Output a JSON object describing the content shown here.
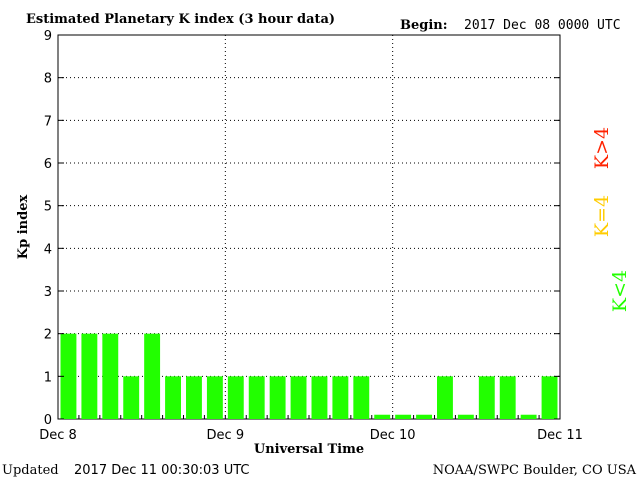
{
  "header": {
    "title": "Estimated Planetary K index (3 hour data)",
    "begin_label": "Begin:",
    "begin_value": "2017 Dec 08 0000 UTC"
  },
  "footer": {
    "updated_label": "Updated",
    "updated_value": "2017 Dec 11 00:30:03 UTC",
    "credit": "NOAA/SWPC Boulder, CO USA"
  },
  "legend": {
    "below": "K<4",
    "equal": "K=4",
    "above": "K>4"
  },
  "colors": {
    "bar": "#22ff00",
    "legend_below": "#22ff00",
    "legend_equal": "#ffcc00",
    "legend_above": "#ff2200",
    "grid": "#000000"
  },
  "chart_data": {
    "type": "bar",
    "title": "Estimated Planetary K index (3 hour data)",
    "xlabel": "Universal Time",
    "ylabel": "Kp index",
    "ylim": [
      0,
      9
    ],
    "yticks": [
      "0",
      "1",
      "2",
      "3",
      "4",
      "5",
      "6",
      "7",
      "8",
      "9"
    ],
    "xticks": [
      "Dec 8",
      "Dec 9",
      "Dec 10",
      "Dec 11"
    ],
    "grid": true,
    "values": [
      2,
      2,
      2,
      1,
      2,
      1,
      1,
      1,
      1,
      1,
      1,
      1,
      1,
      1,
      1,
      0.1,
      0.1,
      0.1,
      1,
      0.1,
      1,
      1,
      0.1,
      1
    ]
  }
}
